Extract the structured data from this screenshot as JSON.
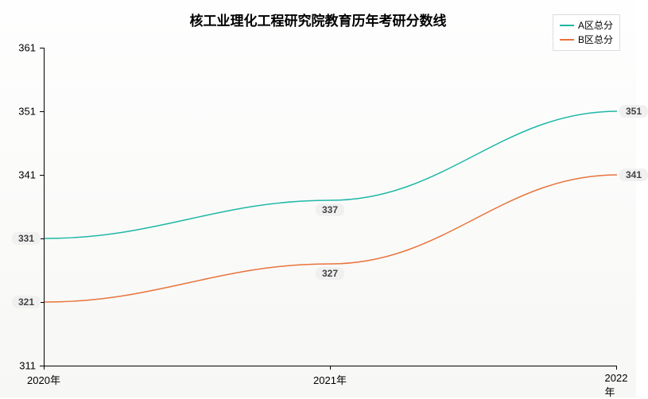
{
  "chart": {
    "type": "line",
    "title": "核工业理化工程研究院教育历年考研分数线",
    "title_fontsize": 17,
    "background_gradient": [
      "#fefefe",
      "#f7f7f5"
    ],
    "plot_border_color": "#000000",
    "x": {
      "categories": [
        "2020年",
        "2021年",
        "2022年"
      ],
      "label_fontsize": 13
    },
    "y": {
      "min": 311,
      "max": 361,
      "step": 10,
      "label_fontsize": 13
    },
    "series": [
      {
        "name": "A区总分",
        "color": "#1fb8a6",
        "line_width": 1.5,
        "values": [
          331,
          337,
          351
        ],
        "label_offsets": [
          [
            -22,
            0
          ],
          [
            0,
            12
          ],
          [
            22,
            0
          ]
        ]
      },
      {
        "name": "B区总分",
        "color": "#e8743b",
        "line_width": 1.5,
        "values": [
          321,
          327,
          341
        ],
        "label_offsets": [
          [
            -22,
            0
          ],
          [
            0,
            12
          ],
          [
            22,
            0
          ]
        ]
      }
    ],
    "legend": {
      "position": "top-right",
      "fontsize": 12,
      "border_color": "#dddddd",
      "background": "#ffffff"
    },
    "point_label": {
      "background": "#f0f0f0",
      "fontsize": 12,
      "color": "#444444"
    }
  }
}
